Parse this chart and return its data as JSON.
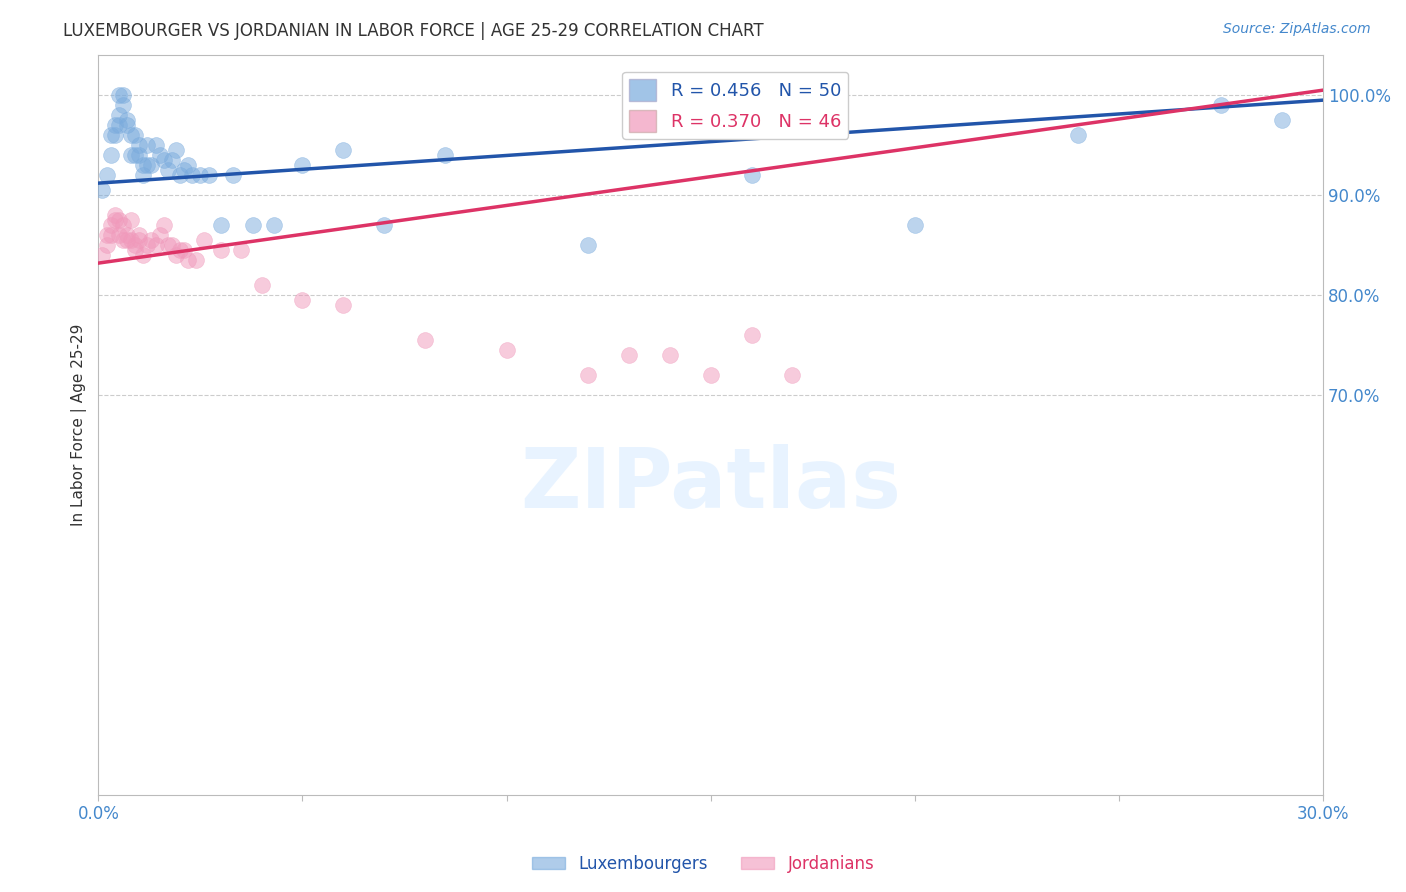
{
  "title": "LUXEMBOURGER VS JORDANIAN IN LABOR FORCE | AGE 25-29 CORRELATION CHART",
  "source": "Source: ZipAtlas.com",
  "ylabel": "In Labor Force | Age 25-29",
  "xlim": [
    0.0,
    0.3
  ],
  "ylim": [
    0.3,
    1.04
  ],
  "xticks": [
    0.0,
    0.05,
    0.1,
    0.15,
    0.2,
    0.25,
    0.3
  ],
  "xtick_labels": [
    "0.0%",
    "",
    "",
    "",
    "",
    "",
    "30.0%"
  ],
  "ytick_right": [
    1.0,
    0.9,
    0.8,
    0.7
  ],
  "ytick_right_labels": [
    "100.0%",
    "90.0%",
    "80.0%",
    "70.0%"
  ],
  "grid_color": "#cccccc",
  "background_color": "#ffffff",
  "title_color": "#333333",
  "axis_color": "#bbbbbb",
  "right_tick_color": "#4488cc",
  "lux_color": "#7aabdd",
  "jor_color": "#f099bb",
  "lux_line_color": "#2255aa",
  "jor_line_color": "#dd3366",
  "lux_R": 0.456,
  "lux_N": 50,
  "jor_R": 0.37,
  "jor_N": 46,
  "legend_label_lux": "Luxembourgers",
  "legend_label_jor": "Jordanians",
  "lux_trend_x0": 0.0,
  "lux_trend_y0": 0.912,
  "lux_trend_x1": 0.3,
  "lux_trend_y1": 0.995,
  "jor_trend_x0": 0.0,
  "jor_trend_y0": 0.832,
  "jor_trend_x1": 0.3,
  "jor_trend_y1": 1.005,
  "lux_scatter_x": [
    0.001,
    0.002,
    0.003,
    0.003,
    0.004,
    0.004,
    0.005,
    0.005,
    0.005,
    0.006,
    0.006,
    0.007,
    0.007,
    0.008,
    0.008,
    0.009,
    0.009,
    0.01,
    0.01,
    0.011,
    0.011,
    0.012,
    0.012,
    0.013,
    0.014,
    0.015,
    0.016,
    0.017,
    0.018,
    0.019,
    0.02,
    0.021,
    0.022,
    0.023,
    0.025,
    0.027,
    0.03,
    0.033,
    0.038,
    0.043,
    0.05,
    0.06,
    0.07,
    0.085,
    0.12,
    0.16,
    0.2,
    0.24,
    0.275,
    0.29
  ],
  "lux_scatter_y": [
    0.905,
    0.92,
    0.96,
    0.94,
    0.96,
    0.97,
    0.97,
    0.98,
    1.0,
    1.0,
    0.99,
    0.975,
    0.97,
    0.94,
    0.96,
    0.94,
    0.96,
    0.94,
    0.95,
    0.93,
    0.92,
    0.93,
    0.95,
    0.93,
    0.95,
    0.94,
    0.935,
    0.925,
    0.935,
    0.945,
    0.92,
    0.925,
    0.93,
    0.92,
    0.92,
    0.92,
    0.87,
    0.92,
    0.87,
    0.87,
    0.93,
    0.945,
    0.87,
    0.94,
    0.85,
    0.92,
    0.87,
    0.96,
    0.99,
    0.975
  ],
  "jor_scatter_x": [
    0.001,
    0.002,
    0.002,
    0.003,
    0.003,
    0.004,
    0.004,
    0.005,
    0.005,
    0.006,
    0.006,
    0.007,
    0.007,
    0.008,
    0.008,
    0.009,
    0.009,
    0.01,
    0.01,
    0.011,
    0.012,
    0.013,
    0.014,
    0.015,
    0.016,
    0.017,
    0.018,
    0.019,
    0.02,
    0.021,
    0.022,
    0.024,
    0.026,
    0.03,
    0.035,
    0.04,
    0.05,
    0.06,
    0.08,
    0.1,
    0.12,
    0.15,
    0.17,
    0.13,
    0.14,
    0.16
  ],
  "jor_scatter_y": [
    0.84,
    0.85,
    0.86,
    0.86,
    0.87,
    0.875,
    0.88,
    0.86,
    0.875,
    0.855,
    0.87,
    0.855,
    0.86,
    0.875,
    0.855,
    0.845,
    0.85,
    0.855,
    0.86,
    0.84,
    0.85,
    0.855,
    0.85,
    0.86,
    0.87,
    0.85,
    0.85,
    0.84,
    0.845,
    0.845,
    0.835,
    0.835,
    0.855,
    0.845,
    0.845,
    0.81,
    0.795,
    0.79,
    0.755,
    0.745,
    0.72,
    0.72,
    0.72,
    0.74,
    0.74,
    0.76
  ]
}
